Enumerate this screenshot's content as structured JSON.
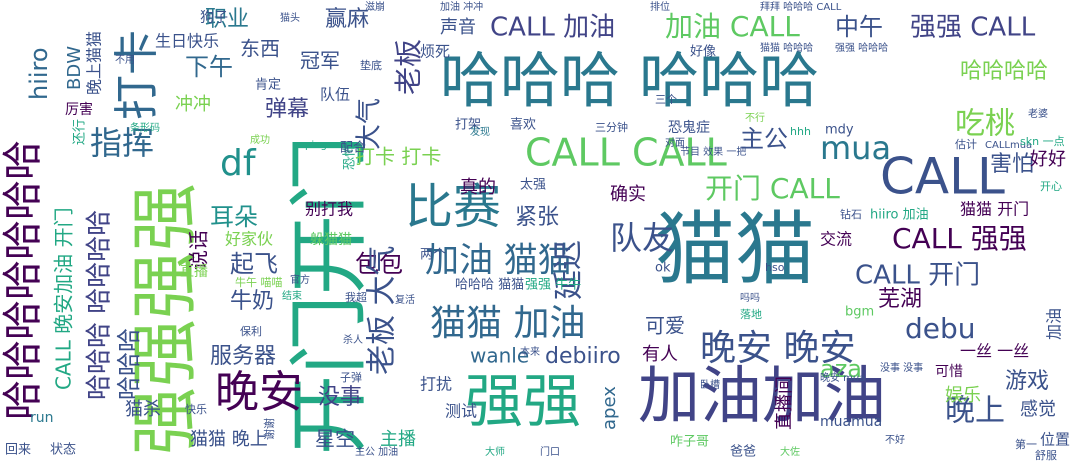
{
  "words": [
    "猫猫",
    "强强",
    "加油加油",
    "哈哈哈 哈哈哈",
    "开门开门",
    "强强强强",
    "比赛",
    "晚安",
    "晚安 晚安",
    "猫猫 加油",
    "CALL",
    "CALL CALL",
    "加油 猫猫",
    "哈哈哈哈哈哈哈",
    "打卡",
    "df",
    "mua",
    "开门 CALL",
    "强强 CALL",
    "加油 CALL",
    "CALL 加油",
    "中午",
    "哈哈哈哈",
    "吃桃",
    "害怕",
    "好好",
    "CALL 开门",
    "CALL 强强",
    "debu",
    "队友",
    "延迟",
    "主公",
    "耳朵",
    "指挥",
    "冲冲",
    "职业",
    "赢麻",
    "老板",
    "声音",
    "下午",
    "冠军",
    "弹幕",
    "大气",
    "东西",
    "生日快乐",
    "狗子",
    "打卡 打卡",
    "真的",
    "紧张",
    "确实",
    "交流",
    "猫猫 开门",
    "包包",
    "起飞",
    "说话",
    "牛奶",
    "好家伙",
    "别打我",
    "躲猫猫",
    "服务器",
    "没事",
    "老板 大气",
    "星空",
    "主播",
    "测试",
    "打扰",
    "wanle",
    "debiiro",
    "有人",
    "可爱",
    "apex",
    "直播间",
    "aza",
    "晚上",
    "芜湖",
    "游戏",
    "感觉",
    "娱乐",
    "一丝 一丝",
    "可惜",
    "加油",
    "CALL 晚安加油 开门",
    "哈哈哈 哈哈哈哈",
    "晚上猫猫",
    "BDW",
    "hiiro",
    "哈哈哈",
    "猫杀",
    "猫猫 晚上",
    "run",
    "回来",
    "状态",
    "厉害",
    "直播",
    "bgm",
    "muamua",
    "咋子哥",
    "爸爸",
    "位置",
    "舒服",
    "第一",
    "喜欢",
    "打架",
    "恐鬼症",
    "三分钟",
    "好像",
    "队伍",
    "恐怖",
    "肯定",
    "烦死",
    "垫底",
    "配合",
    "钻石",
    "hiiro 加油",
    "估计",
    "CALLmua",
    "skn 一点",
    "开心",
    "对面",
    "mdy",
    "hhh",
    "哈哈哈 猫猫",
    "强强 牛牛",
    "两个",
    "复活",
    "我超",
    "保利",
    "ok",
    "太强",
    "节目 效果 一把",
    "hso",
    "吗吗",
    "卧槽",
    "晚安 mua",
    "没事 没事",
    "老婆",
    "快乐",
    "杀人",
    "子弹",
    "主公 加油",
    "门口",
    "大师",
    "大佐",
    "不好",
    "落地",
    "本来",
    "拜拜 哈哈哈 CALL",
    "猫猫 哈哈哈",
    "强强 哈哈哈",
    "不行",
    "发现",
    "三个",
    "成功",
    "ping",
    "条形码",
    "官方",
    "结束",
    "牛午 喵喵",
    "不用",
    "猫头",
    "滋崩",
    "加油 冲冲",
    "排位",
    "还行",
    "谢谢"
  ]
}
